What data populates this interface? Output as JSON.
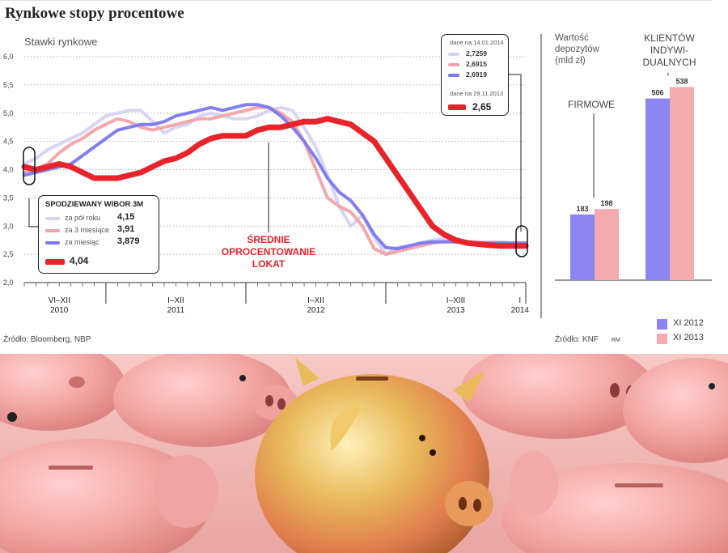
{
  "title": "Rynkowe stopy procentowe",
  "chart_data": [
    {
      "type": "line",
      "title": "Rynkowe stopy procentowe",
      "ylabel": "Stawki rynkowe",
      "ylim": [
        2.0,
        6.0
      ],
      "y_ticks": [
        "6,0",
        "5,5",
        "5,0",
        "4,5",
        "4,0",
        "3,5",
        "3,0",
        "2,5",
        "2,0"
      ],
      "y_tick_values": [
        6.0,
        5.5,
        5.0,
        4.5,
        4.0,
        3.5,
        3.0,
        2.5,
        2.0
      ],
      "xlim": [
        0,
        43
      ],
      "x_period_labels": [
        {
          "period": "VI–XII",
          "year": "2010",
          "at": 3
        },
        {
          "period": "I–XII",
          "year": "2011",
          "at": 13
        },
        {
          "period": "I–XII",
          "year": "2012",
          "at": 25
        },
        {
          "period": "I–XIII",
          "year": "2013",
          "at": 37
        },
        {
          "period": "I",
          "year": "2014",
          "at": 42.5
        }
      ],
      "series": [
        {
          "name": "WIBOR 3M (dane na 14.01.2014)",
          "color": "#d6d2f2",
          "x": [
            0,
            1,
            2,
            3,
            4,
            5,
            6,
            7,
            8,
            9,
            10,
            11,
            12,
            13,
            14,
            15,
            16,
            17,
            18,
            19,
            20,
            21,
            22,
            23,
            24,
            25,
            26,
            27,
            28,
            29,
            30,
            31,
            32,
            33,
            34,
            35,
            36,
            37,
            38,
            39,
            40,
            41,
            42,
            43
          ],
          "values": [
            4.1,
            4.2,
            4.35,
            4.45,
            4.55,
            4.65,
            4.8,
            4.95,
            5.0,
            5.05,
            5.05,
            4.85,
            4.65,
            4.75,
            4.8,
            4.95,
            5.0,
            4.95,
            4.9,
            4.9,
            4.95,
            5.05,
            5.1,
            5.05,
            4.75,
            4.4,
            3.9,
            3.35,
            3.0,
            3.2,
            2.8,
            2.5,
            2.62,
            2.65,
            2.7,
            2.75,
            2.78,
            2.75,
            2.73,
            2.72,
            2.72,
            2.72,
            2.7,
            2.7
          ]
        },
        {
          "name": "WIBOR 3M (dane na 14.01.2014)",
          "color": "#f2a3a6",
          "x": [
            0,
            1,
            2,
            3,
            4,
            5,
            6,
            7,
            8,
            9,
            10,
            11,
            12,
            13,
            14,
            15,
            16,
            17,
            18,
            19,
            20,
            21,
            22,
            23,
            24,
            25,
            26,
            27,
            28,
            29,
            30,
            31,
            32,
            33,
            34,
            35,
            36,
            37,
            38,
            39,
            40,
            41,
            42,
            43
          ],
          "values": [
            3.95,
            4.0,
            4.1,
            4.3,
            4.45,
            4.55,
            4.7,
            4.8,
            4.9,
            4.85,
            4.75,
            4.7,
            4.75,
            4.8,
            4.85,
            4.9,
            4.9,
            4.95,
            5.0,
            5.05,
            5.1,
            5.1,
            5.0,
            4.85,
            4.5,
            4.0,
            3.5,
            3.35,
            3.25,
            3.0,
            2.6,
            2.5,
            2.55,
            2.6,
            2.65,
            2.7,
            2.73,
            2.72,
            2.7,
            2.7,
            2.7,
            2.7,
            2.7,
            2.7
          ]
        },
        {
          "name": "WIBOR 3M (dane na 14.01.2014)",
          "color": "#7b78ef",
          "x": [
            0,
            1,
            2,
            3,
            4,
            5,
            6,
            7,
            8,
            9,
            10,
            11,
            12,
            13,
            14,
            15,
            16,
            17,
            18,
            19,
            20,
            21,
            22,
            23,
            24,
            25,
            26,
            27,
            28,
            29,
            30,
            31,
            32,
            33,
            34,
            35,
            36,
            37,
            38,
            39,
            40,
            41,
            42,
            43
          ],
          "values": [
            3.9,
            3.95,
            4.0,
            4.05,
            4.1,
            4.25,
            4.4,
            4.55,
            4.7,
            4.75,
            4.8,
            4.8,
            4.85,
            4.95,
            5.0,
            5.05,
            5.1,
            5.05,
            5.1,
            5.15,
            5.15,
            5.1,
            4.95,
            4.75,
            4.5,
            4.2,
            3.85,
            3.6,
            3.45,
            3.2,
            2.85,
            2.62,
            2.6,
            2.65,
            2.7,
            2.72,
            2.72,
            2.72,
            2.7,
            2.7,
            2.7,
            2.7,
            2.7,
            2.7
          ]
        },
        {
          "name": "Średnie oprocentowanie lokat (dane na 29.11.2013)",
          "color": "#e8232a",
          "x": [
            0,
            1,
            2,
            3,
            4,
            5,
            6,
            7,
            8,
            9,
            10,
            11,
            12,
            13,
            14,
            15,
            16,
            17,
            18,
            19,
            20,
            21,
            22,
            23,
            24,
            25,
            26,
            27,
            28,
            29,
            30,
            31,
            32,
            33,
            34,
            35,
            36,
            37,
            38,
            39,
            40,
            41,
            42,
            43
          ],
          "values": [
            4.05,
            4.0,
            4.05,
            4.1,
            4.05,
            3.95,
            3.85,
            3.85,
            3.85,
            3.9,
            3.95,
            4.05,
            4.15,
            4.2,
            4.3,
            4.45,
            4.55,
            4.6,
            4.6,
            4.6,
            4.7,
            4.75,
            4.75,
            4.8,
            4.85,
            4.85,
            4.9,
            4.85,
            4.8,
            4.65,
            4.5,
            4.2,
            3.9,
            3.6,
            3.3,
            3.0,
            2.85,
            2.75,
            2.7,
            2.68,
            2.66,
            2.65,
            2.65,
            2.65
          ]
        }
      ],
      "info_box": {
        "date_top": "dane na 14.01.2014",
        "values": [
          "2,7259",
          "2,6915",
          "2,6919"
        ],
        "date_bottom": "dane na 29.11.2013",
        "avg_value": "2,65"
      },
      "legend": {
        "title": "SPODZIEWANY WIBOR 3M",
        "rows": [
          {
            "label": "za pół roku",
            "value": "4,15"
          },
          {
            "label": "za 3 miesiące",
            "value": "3,91"
          },
          {
            "label": "za miesiąc",
            "value": "3,879"
          }
        ],
        "avg_value": "4,04"
      },
      "annotation": [
        "ŚREDNIE",
        "OPROCENTOWANIE",
        "LOKAT"
      ],
      "source": "Źródło: Bloomberg, NBP"
    },
    {
      "type": "bar",
      "title": "Wartość depozytów (mld zł)",
      "ylabel": "Wartość depozytów (mld zł)",
      "categories": [
        "FIRMOWE",
        "KLIENTÓW INDYWIDUALNYCH"
      ],
      "category_labels": [
        [
          "FIRMOWE"
        ],
        [
          "KLIENTÓW",
          "INDYWI-",
          "DUALNYCH"
        ]
      ],
      "ylim": [
        0,
        600
      ],
      "series": [
        {
          "name": "XI 2012",
          "color": "#8c84f2",
          "values": [
            183,
            506
          ]
        },
        {
          "name": "XI 2013",
          "color": "#f4aaae",
          "values": [
            198,
            538
          ]
        }
      ],
      "source": "Źródło: KNF",
      "credit": "RM"
    }
  ],
  "bars_panel_label": [
    "Wartość",
    "depozytów",
    "(mld zł)"
  ]
}
